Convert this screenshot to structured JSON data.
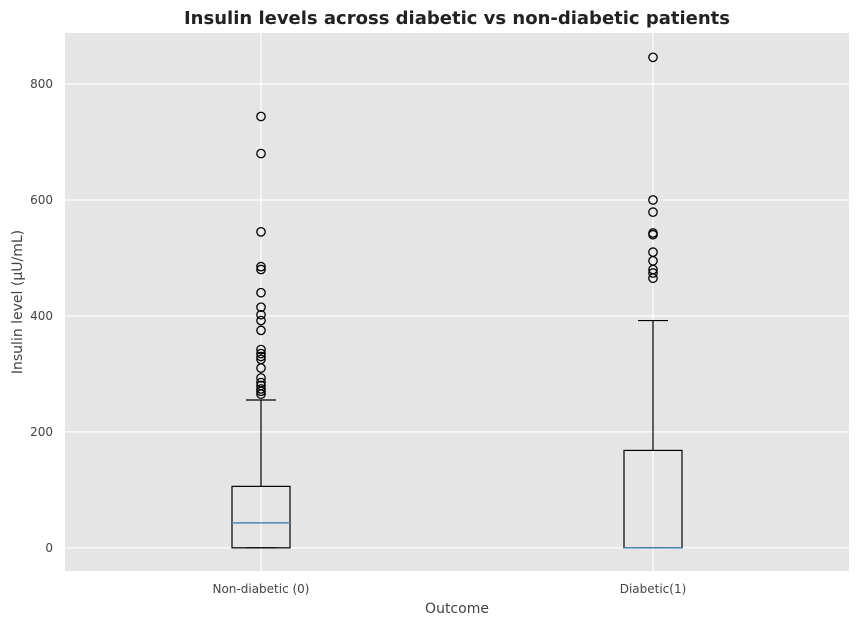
{
  "chart_data": {
    "type": "box",
    "title": "Insulin levels across diabetic vs non-diabetic patients",
    "xlabel": "Outcome",
    "ylabel": "Insulin level (µU/mL)",
    "ylim": [
      -40,
      888
    ],
    "yticks": [
      0,
      200,
      400,
      600,
      800
    ],
    "grid": true,
    "categories": [
      "Non-diabetic (0)",
      "Diabetic(1)"
    ],
    "boxes": [
      {
        "name": "Non-diabetic (0)",
        "whisker_low": 0,
        "q1": 0,
        "median": 43,
        "q3": 106,
        "whisker_high": 255,
        "outliers": [
          744,
          680,
          545,
          485,
          480,
          440,
          415,
          402,
          392,
          375,
          342,
          335,
          330,
          325,
          310,
          293,
          285,
          280,
          274,
          270,
          265
        ]
      },
      {
        "name": "Diabetic(1)",
        "whisker_low": 0,
        "q1": 0,
        "median": 0,
        "q3": 168,
        "whisker_high": 392,
        "outliers": [
          846,
          600,
          579,
          543,
          540,
          510,
          495,
          480,
          474,
          465
        ]
      }
    ],
    "colors": {
      "background": "#e5e5e5",
      "grid": "#ffffff",
      "box": "#000000",
      "median": "#4c8ab8",
      "text": "#444444"
    }
  }
}
